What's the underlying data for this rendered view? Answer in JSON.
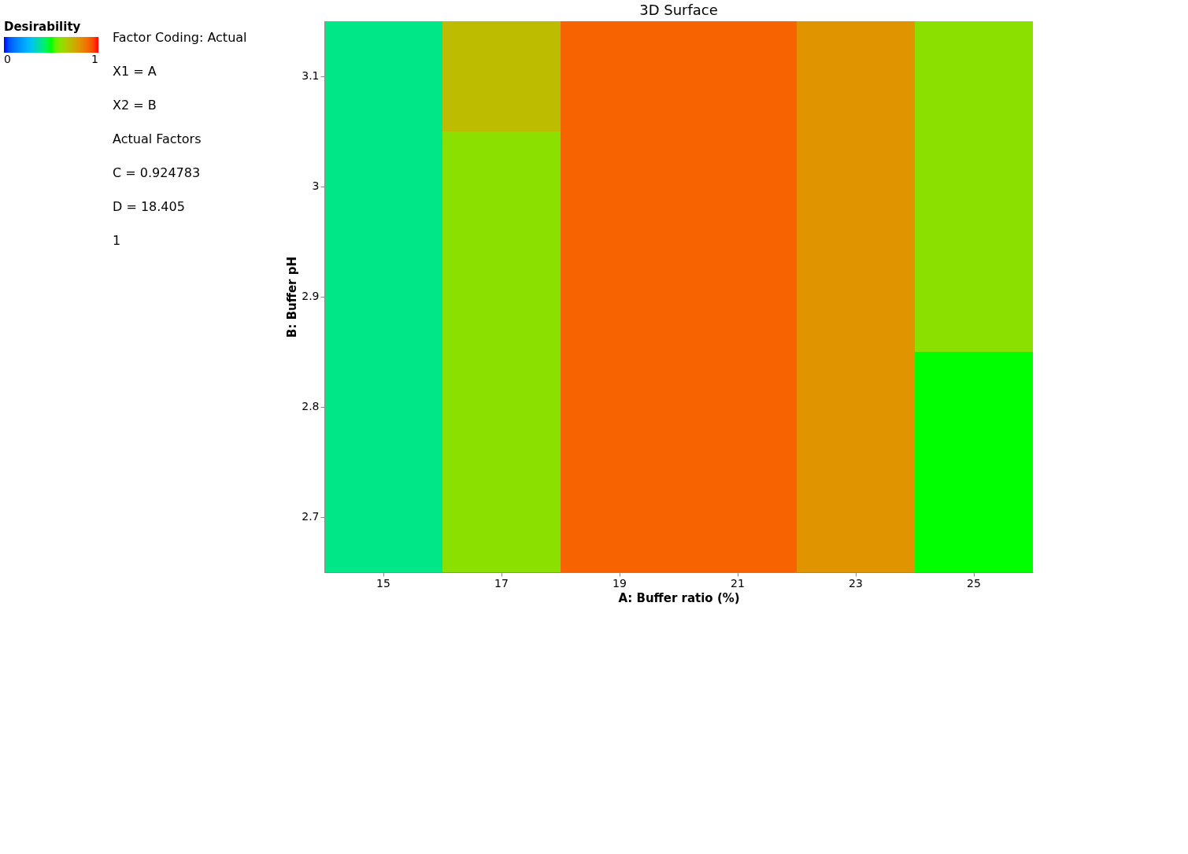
{
  "chart_data": {
    "type": "heatmap",
    "title": "3D Surface",
    "xlabel": "A: Buffer ratio (%)",
    "ylabel": "B: Buffer pH",
    "clabel": "Desirability",
    "categories": [
      "15",
      "17",
      "19",
      "21",
      "23",
      "25"
    ],
    "y_categories": [
      "3.1",
      "3",
      "2.9",
      "2.8",
      "2.7"
    ],
    "cells": [
      [
        0.4,
        0.7,
        0.9,
        0.9,
        0.8,
        0.6
      ],
      [
        0.4,
        0.6,
        0.9,
        0.9,
        0.8,
        0.6
      ],
      [
        0.4,
        0.6,
        0.9,
        0.9,
        0.8,
        0.6
      ],
      [
        0.4,
        0.6,
        0.9,
        0.9,
        0.8,
        0.5
      ],
      [
        0.4,
        0.6,
        0.9,
        0.9,
        0.8,
        0.5
      ]
    ],
    "clim": [
      0,
      1
    ],
    "cticks": [
      0,
      1
    ],
    "colors": [
      "#0000ff",
      "#00ff00",
      "#ff0000"
    ],
    "annotations": [
      "Factor Coding: Actual",
      "X1 = A",
      "X2 = B",
      "Actual Factors",
      "C = 0.924783",
      "D = 18.405",
      "1"
    ]
  }
}
